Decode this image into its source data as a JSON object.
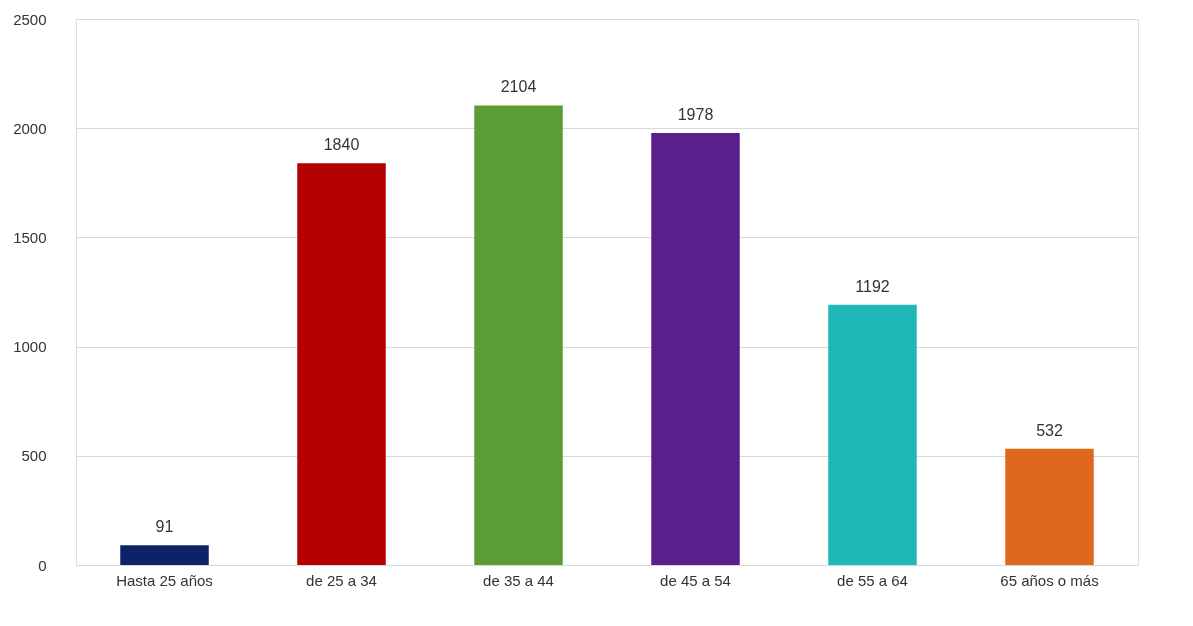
{
  "chart_data": {
    "type": "bar",
    "categories": [
      "Hasta 25 años",
      "de 25 a 34",
      "de 35 a 44",
      "de 45 a 54",
      "de 55 a 64",
      "65 años o más"
    ],
    "values": [
      91,
      1840,
      2104,
      1978,
      1192,
      532
    ],
    "colors": [
      "#0c2466",
      "#b30000",
      "#5c9c34",
      "#5b1f8c",
      "#1fb8b8",
      "#e0681e"
    ],
    "ylim": [
      0,
      2500
    ],
    "yticks": [
      0,
      500,
      1000,
      1500,
      2000,
      2500
    ],
    "grid": "y",
    "data_labels": true
  }
}
